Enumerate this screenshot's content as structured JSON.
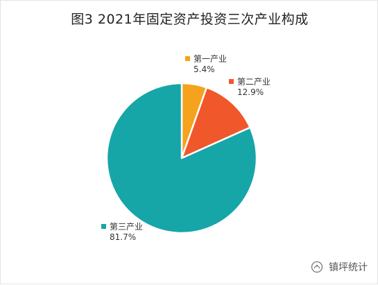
{
  "chart_data": {
    "type": "pie",
    "title": "图3  2021年固定资产投资三次产业构成",
    "slices": [
      {
        "name": "第一产业",
        "value": 5.4,
        "label": "5.4%",
        "color": "#f5a21c"
      },
      {
        "name": "第二产业",
        "value": 12.9,
        "label": "12.9%",
        "color": "#f0572b"
      },
      {
        "name": "第三产业",
        "value": 81.7,
        "label": "81.7%",
        "color": "#16a6a8"
      }
    ],
    "legend_placement": "labels beside slices"
  },
  "watermark": {
    "text": "镇坪统计",
    "icon": "wechat-official-account-icon"
  }
}
